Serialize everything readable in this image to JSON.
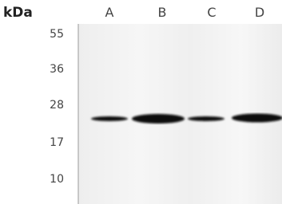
{
  "header": {
    "unit": "kDa"
  },
  "lanes": [
    "A",
    "B",
    "C",
    "D"
  ],
  "markers": [
    "55",
    "36",
    "28",
    "17",
    "10"
  ]
}
